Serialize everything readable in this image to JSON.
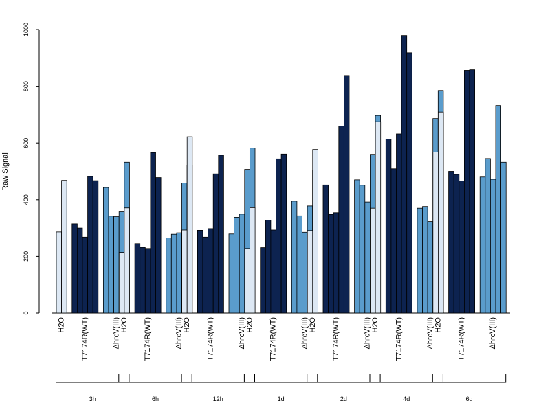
{
  "chart_data": {
    "type": "bar",
    "ylabel": "Raw Signal",
    "ylim": [
      0,
      1000
    ],
    "yticks": [
      "0",
      "200",
      "400",
      "600",
      "800",
      "1000"
    ],
    "group_labels": [
      "H2O",
      "T7174R(WT)",
      "ΔhrcV(III)"
    ],
    "colors": {
      "H2O": "#dde8f4",
      "T7174R(WT)": "#0d2350",
      "ΔhrcV(III)": "#5a9ccc"
    },
    "timepoints": [
      {
        "label": "3h",
        "groups": [
          [
            286,
            468
          ],
          [
            315,
            300,
            268,
            482,
            467
          ],
          [
            443,
            342,
            340,
            357,
            532
          ]
        ]
      },
      {
        "label": "6h",
        "groups": [
          [
            214,
            371
          ],
          [
            245,
            232,
            228,
            566,
            478
          ],
          [
            265,
            278,
            283,
            459,
            522
          ]
        ]
      },
      {
        "label": "12h",
        "groups": [
          [
            293,
            622
          ],
          [
            292,
            268,
            298,
            491,
            557
          ],
          [
            279,
            338,
            349,
            507,
            582
          ]
        ]
      },
      {
        "label": "1d",
        "groups": [
          [
            228,
            372
          ],
          [
            231,
            328,
            293,
            544,
            561
          ],
          [
            395,
            343,
            285,
            378,
            503
          ]
        ]
      },
      {
        "label": "2d",
        "groups": [
          [
            291,
            577
          ],
          [
            452,
            348,
            354,
            660,
            838
          ],
          [
            470,
            451,
            392,
            560,
            697
          ]
        ]
      },
      {
        "label": "4d",
        "groups": [
          [
            370,
            675
          ],
          [
            614,
            509,
            632,
            979,
            918
          ],
          [
            370,
            376,
            323,
            686,
            785
          ]
        ]
      },
      {
        "label": "6d",
        "groups": [
          [
            568,
            709
          ],
          [
            500,
            489,
            466,
            856,
            858
          ],
          [
            480,
            545,
            472,
            732,
            532
          ]
        ]
      }
    ]
  }
}
